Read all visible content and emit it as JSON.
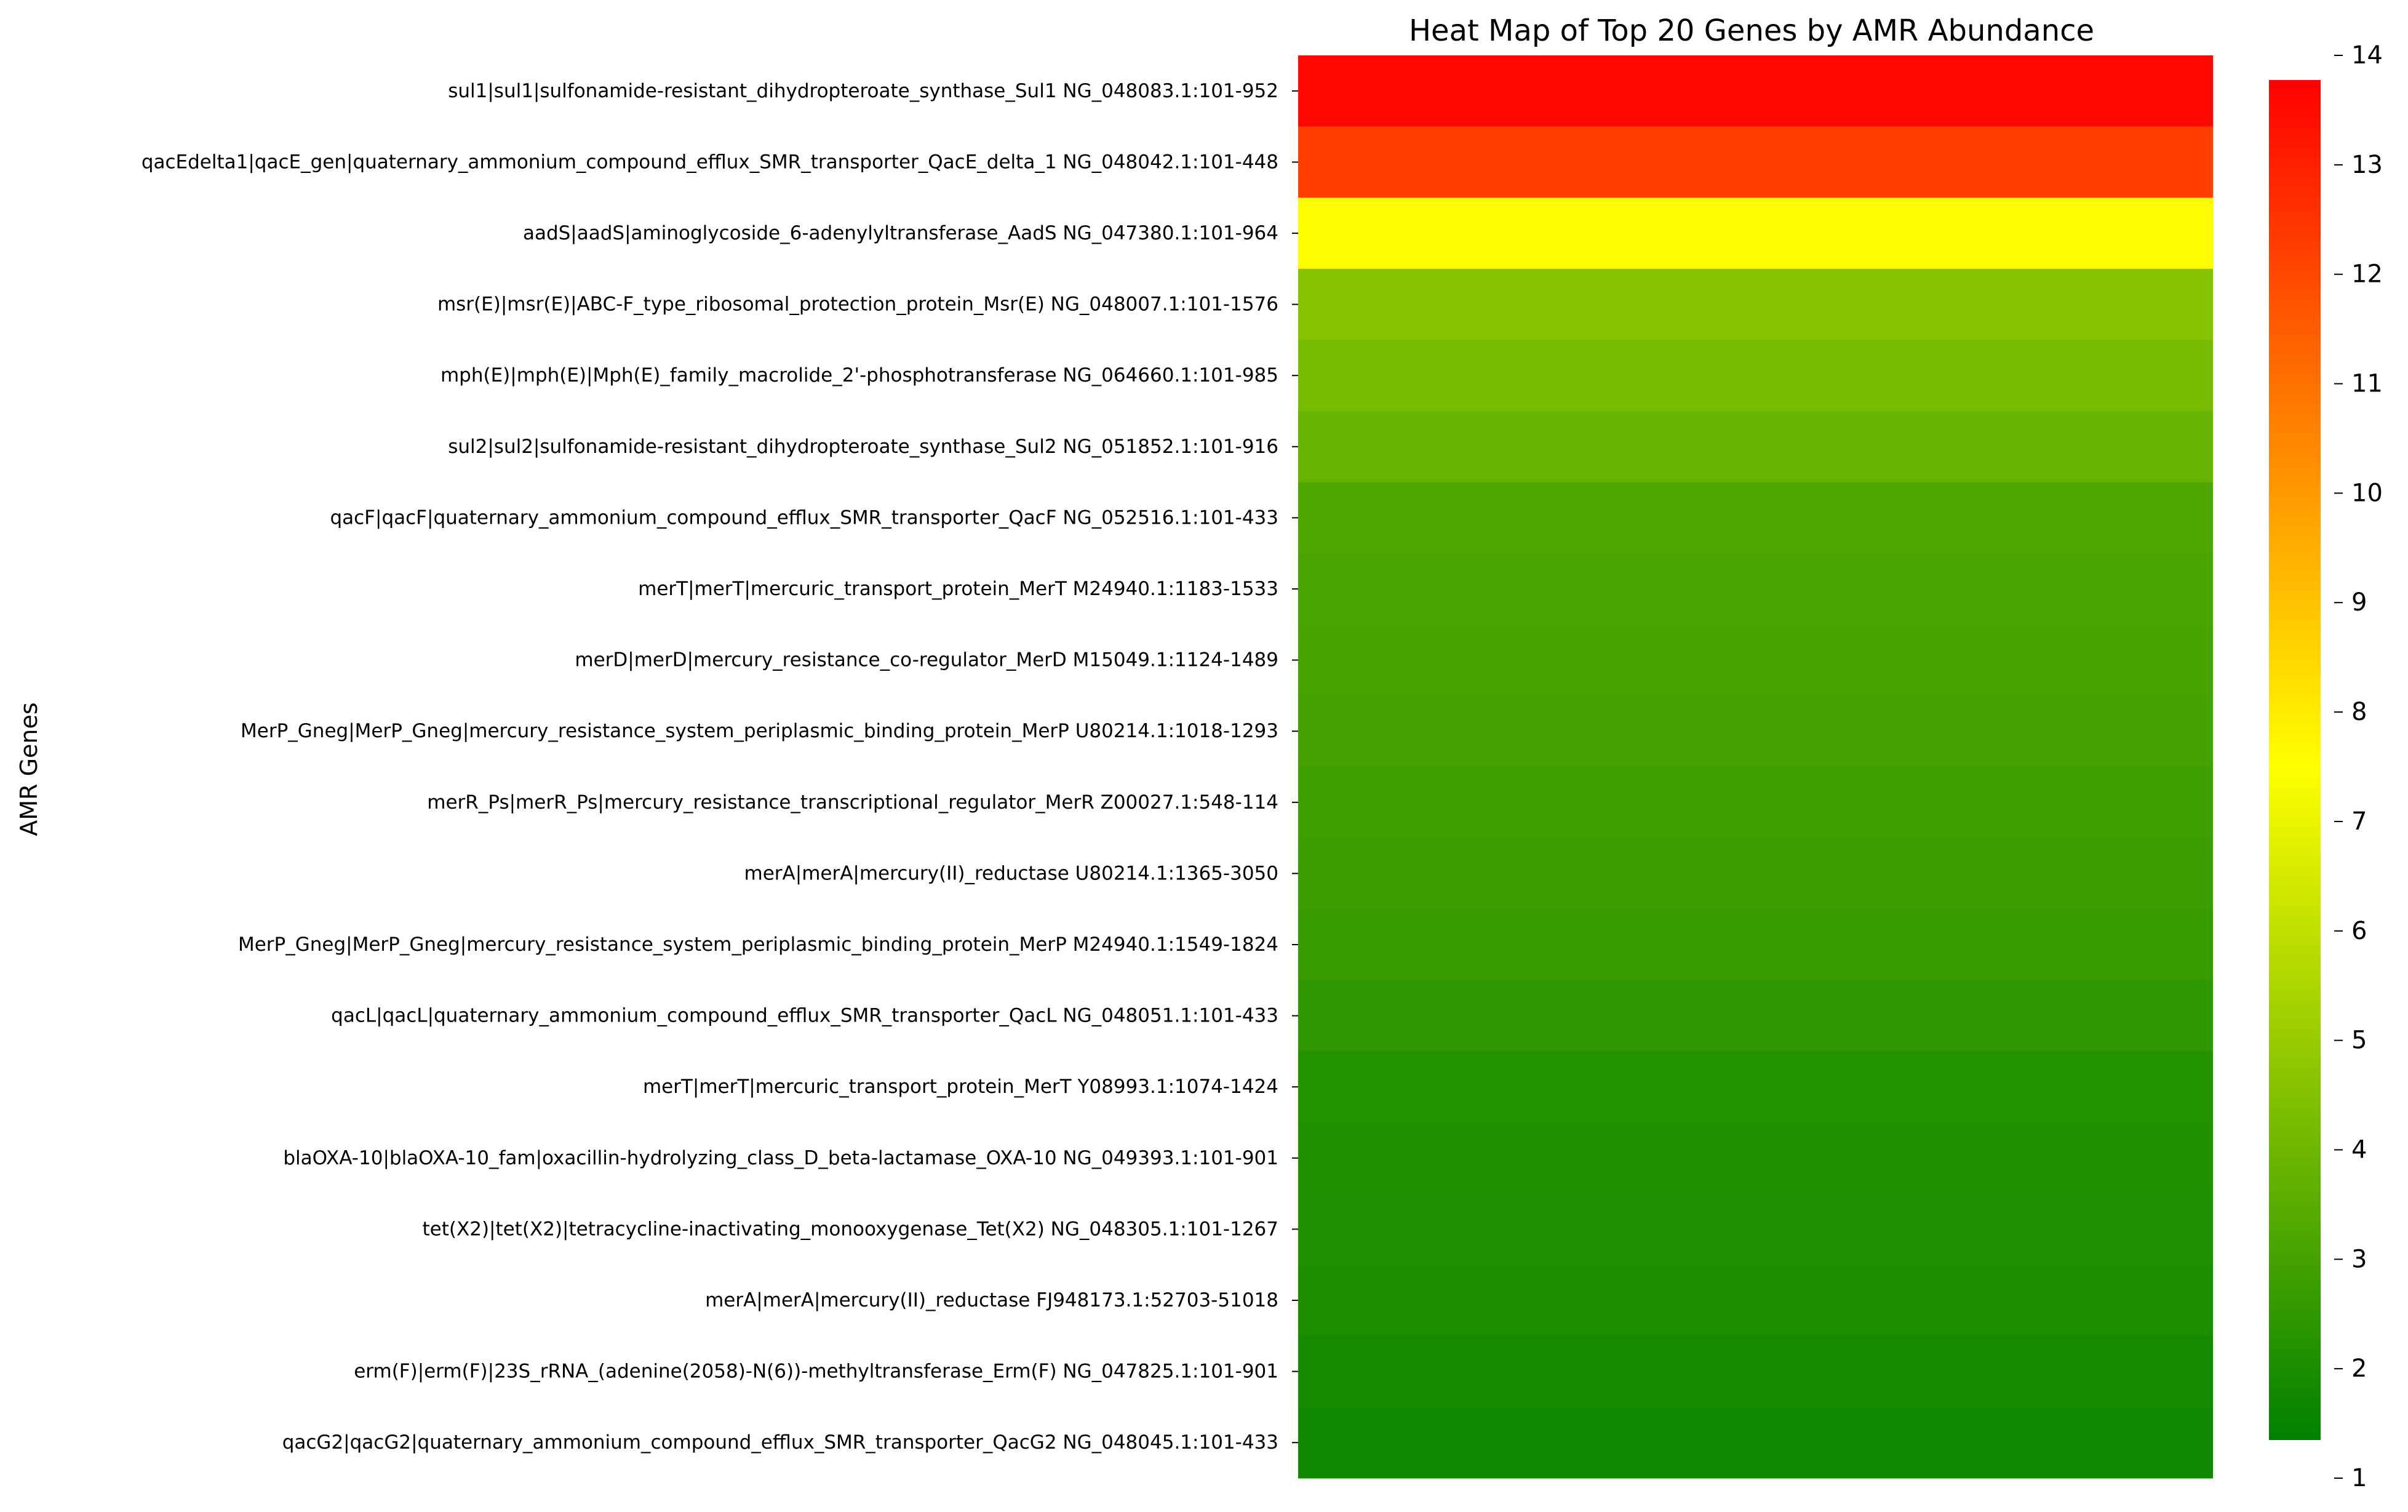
{
  "chart_data": {
    "type": "heatmap",
    "title": "Heat Map of Top 20 Genes by AMR Abundance",
    "ylabel": "AMR Genes",
    "xlabel": "",
    "rows": [
      "sul1|sul1|sulfonamide-resistant_dihydropteroate_synthase_Sul1 NG_048083.1:101-952",
      "qacEdelta1|qacE_gen|quaternary_ammonium_compound_efflux_SMR_transporter_QacE_delta_1 NG_048042.1:101-448",
      "aadS|aadS|aminoglycoside_6-adenylyltransferase_AadS NG_047380.1:101-964",
      "msr(E)|msr(E)|ABC-F_type_ribosomal_protection_protein_Msr(E) NG_048007.1:101-1576",
      "mph(E)|mph(E)|Mph(E)_family_macrolide_2'-phosphotransferase NG_064660.1:101-985",
      "sul2|sul2|sulfonamide-resistant_dihydropteroate_synthase_Sul2 NG_051852.1:101-916",
      "qacF|qacF|quaternary_ammonium_compound_efflux_SMR_transporter_QacF NG_052516.1:101-433",
      "merT|merT|mercuric_transport_protein_MerT M24940.1:1183-1533",
      "merD|merD|mercury_resistance_co-regulator_MerD M15049.1:1124-1489",
      "MerP_Gneg|MerP_Gneg|mercury_resistance_system_periplasmic_binding_protein_MerP U80214.1:1018-1293",
      "merR_Ps|merR_Ps|mercury_resistance_transcriptional_regulator_MerR Z00027.1:548-114",
      "merA|merA|mercury(II)_reductase U80214.1:1365-3050",
      "MerP_Gneg|MerP_Gneg|mercury_resistance_system_periplasmic_binding_protein_MerP M24940.1:1549-1824",
      "qacL|qacL|quaternary_ammonium_compound_efflux_SMR_transporter_QacL NG_048051.1:101-433",
      "merT|merT|mercuric_transport_protein_MerT Y08993.1:1074-1424",
      "blaOXA-10|blaOXA-10_fam|oxacillin-hydrolyzing_class_D_beta-lactamase_OXA-10 NG_049393.1:101-901",
      "tet(X2)|tet(X2)|tetracycline-inactivating_monooxygenase_Tet(X2) NG_048305.1:101-1267",
      "merA|merA|mercury(II)_reductase FJ948173.1:52703-51018",
      "erm(F)|erm(F)|23S_rRNA_(adenine(2058)-N(6))-methyltransferase_Erm(F) NG_047825.1:101-901",
      "qacG2|qacG2|quaternary_ammonium_compound_efflux_SMR_transporter_QacG2 NG_048045.1:101-433"
    ],
    "values": [
      13.8,
      12.4,
      7.6,
      4.4,
      4.0,
      3.6,
      3.0,
      2.9,
      2.8,
      2.7,
      2.6,
      2.5,
      2.4,
      2.2,
      1.9,
      1.85,
      1.8,
      1.7,
      1.5,
      1.4
    ],
    "colorbar": {
      "range": [
        1,
        14
      ],
      "ticks": [
        1,
        2,
        3,
        4,
        5,
        6,
        7,
        8,
        9,
        10,
        11,
        12,
        13,
        14
      ],
      "colors": [
        "#008000",
        "#ffff00",
        "#ff0000"
      ]
    },
    "legend": "colorbar-right"
  }
}
